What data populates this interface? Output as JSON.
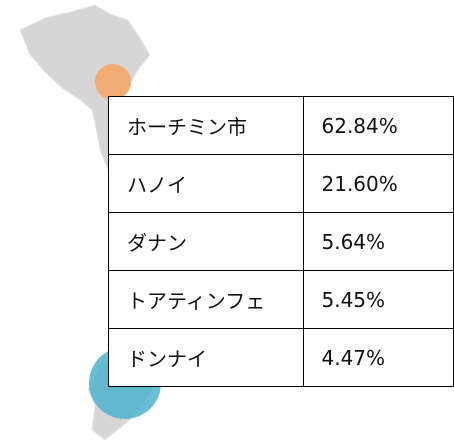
{
  "table": {
    "rows": [
      [
        "ホーチミン市",
        "62.84%"
      ],
      [
        "ハノイ",
        "21.60%"
      ],
      [
        "ダナン",
        "5.64%"
      ],
      [
        "トアティンフェ",
        "5.45%"
      ],
      [
        "ドンナイ",
        "4.47%"
      ]
    ]
  }
}
